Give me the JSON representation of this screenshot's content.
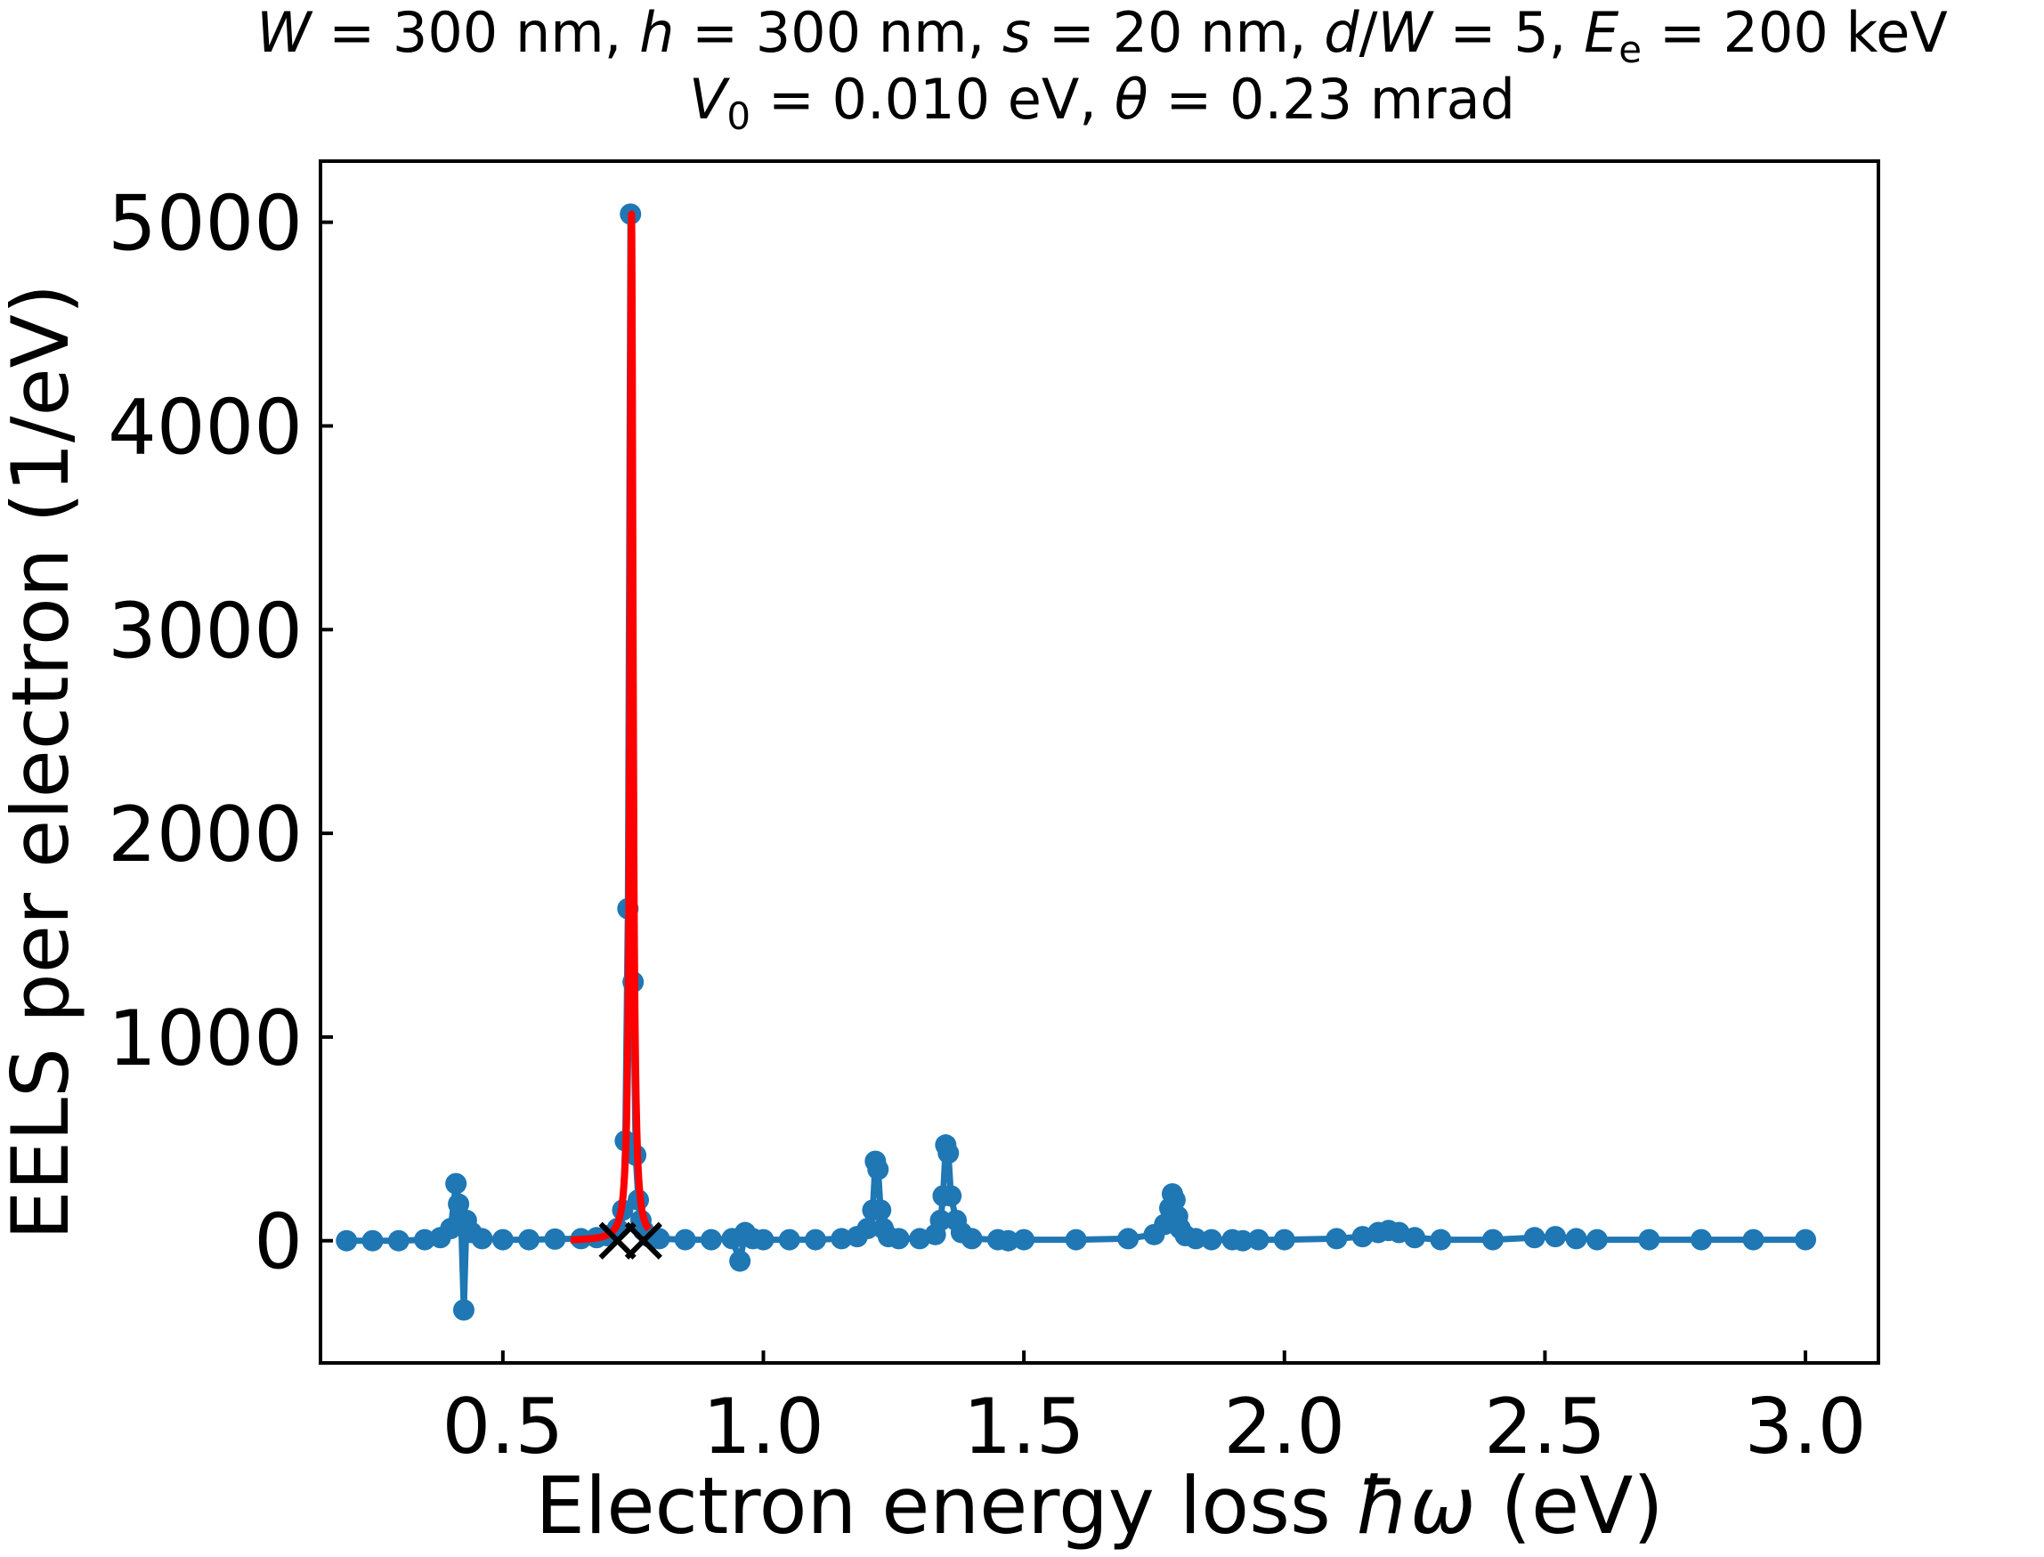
{
  "chart_data": {
    "type": "scatter",
    "title_line1": "W = 300 nm, h = 300 nm, s = 20 nm, d/W = 5, E_e = 200 keV",
    "title_line2": "V_0 = 0.010 eV, θ = 0.23 mrad",
    "xlabel": "Electron energy loss ħω (eV)",
    "ylabel": "EELS per electron (1/eV)",
    "xlim": [
      0.15,
      3.14
    ],
    "ylim": [
      -600,
      5300
    ],
    "x_ticks": [
      0.5,
      1.0,
      1.5,
      2.0,
      2.5,
      3.0
    ],
    "x_tick_labels": [
      "0.5",
      "1.0",
      "1.5",
      "2.0",
      "2.5",
      "3.0"
    ],
    "y_ticks": [
      0,
      1000,
      2000,
      3000,
      4000,
      5000
    ],
    "y_tick_labels": [
      "0",
      "1000",
      "2000",
      "3000",
      "4000",
      "5000"
    ],
    "grid": false,
    "series": [
      {
        "style": "line-with-markers",
        "color": "#1f77b4",
        "x": [
          0.2,
          0.25,
          0.3,
          0.35,
          0.38,
          0.4,
          0.41,
          0.415,
          0.42,
          0.425,
          0.43,
          0.44,
          0.46,
          0.5,
          0.55,
          0.6,
          0.65,
          0.68,
          0.7,
          0.72,
          0.73,
          0.735,
          0.74,
          0.745,
          0.75,
          0.755,
          0.76,
          0.765,
          0.77,
          0.78,
          0.8,
          0.85,
          0.9,
          0.94,
          0.955,
          0.965,
          0.98,
          1.0,
          1.05,
          1.1,
          1.15,
          1.18,
          1.2,
          1.21,
          1.215,
          1.22,
          1.225,
          1.23,
          1.24,
          1.26,
          1.3,
          1.33,
          1.34,
          1.345,
          1.35,
          1.355,
          1.36,
          1.37,
          1.38,
          1.4,
          1.45,
          1.47,
          1.5,
          1.6,
          1.7,
          1.75,
          1.77,
          1.78,
          1.785,
          1.79,
          1.795,
          1.8,
          1.81,
          1.83,
          1.86,
          1.9,
          1.92,
          1.95,
          2.0,
          2.1,
          2.15,
          2.18,
          2.2,
          2.22,
          2.25,
          2.3,
          2.4,
          2.48,
          2.52,
          2.56,
          2.6,
          2.7,
          2.8,
          2.9,
          3.0
        ],
        "y": [
          0,
          0,
          0,
          5,
          15,
          60,
          280,
          180,
          100,
          -340,
          100,
          40,
          10,
          5,
          5,
          8,
          10,
          15,
          25,
          60,
          150,
          490,
          1630,
          5040,
          1270,
          420,
          200,
          100,
          50,
          20,
          10,
          5,
          5,
          10,
          -100,
          40,
          10,
          5,
          5,
          5,
          10,
          20,
          60,
          150,
          390,
          350,
          150,
          60,
          20,
          10,
          10,
          30,
          100,
          220,
          470,
          430,
          220,
          100,
          40,
          10,
          5,
          0,
          5,
          5,
          10,
          30,
          80,
          160,
          230,
          200,
          120,
          60,
          25,
          10,
          5,
          5,
          0,
          5,
          5,
          10,
          20,
          40,
          50,
          40,
          15,
          5,
          5,
          15,
          20,
          10,
          5,
          5,
          5,
          5,
          5
        ]
      },
      {
        "style": "line",
        "color": "#ff0000",
        "lorentzian_center": 0.747,
        "lorentzian_peak": 5040,
        "lorentzian_hwhm": 0.0035,
        "x_range": [
          0.63,
          0.78
        ]
      },
      {
        "style": "x-markers",
        "color": "#000000",
        "x": [
          0.72,
          0.77
        ],
        "y": [
          0,
          0
        ]
      }
    ]
  }
}
